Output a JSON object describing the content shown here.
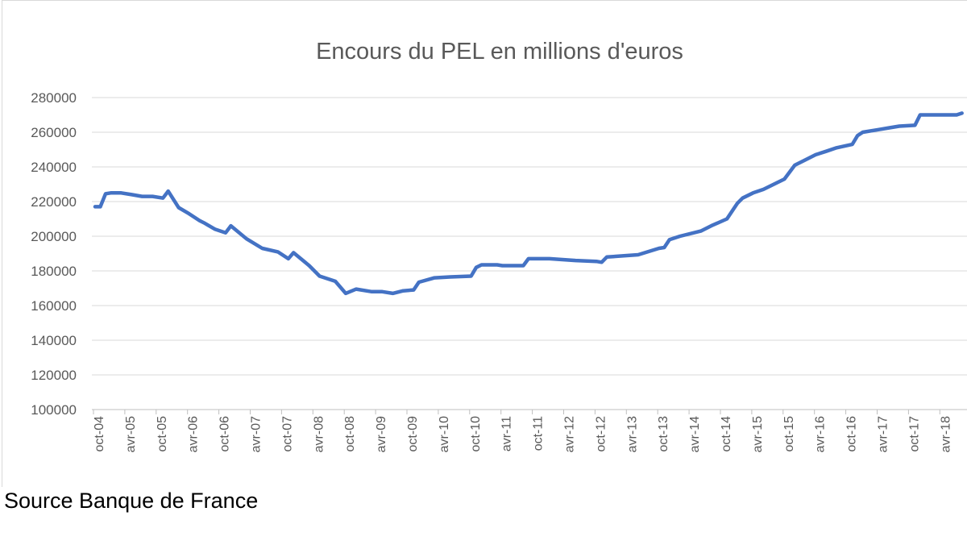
{
  "chart_data": {
    "type": "line",
    "title": "Encours du PEL en millions d'euros",
    "xlabel": "",
    "ylabel": "",
    "ylim": [
      100000,
      280000
    ],
    "yticks": [
      "280000",
      "260000",
      "240000",
      "220000",
      "200000",
      "180000",
      "160000",
      "140000",
      "120000",
      "100000"
    ],
    "xticks": [
      "oct-04",
      "avr-05",
      "oct-05",
      "avr-06",
      "oct-06",
      "avr-07",
      "oct-07",
      "avr-08",
      "oct-08",
      "avr-09",
      "oct-09",
      "avr-10",
      "oct-10",
      "avr-11",
      "oct-11",
      "avr-12",
      "oct-12",
      "avr-13",
      "oct-13",
      "avr-14",
      "oct-14",
      "avr-15",
      "oct-15",
      "avr-16",
      "oct-16",
      "avr-17",
      "oct-17",
      "avr-18"
    ],
    "grid": true,
    "line_color": "#4472c4",
    "series": [
      {
        "x": [
          "2004-10",
          "2004-11",
          "2004-12",
          "2005-01",
          "2005-03",
          "2005-05",
          "2005-07",
          "2005-09",
          "2005-11",
          "2005-12",
          "2006-02",
          "2006-04",
          "2006-06",
          "2006-07",
          "2006-09",
          "2006-11",
          "2006-12",
          "2007-03",
          "2007-06",
          "2007-09",
          "2007-11",
          "2007-12",
          "2008-03",
          "2008-05",
          "2008-08",
          "2008-10",
          "2008-12",
          "2009-03",
          "2009-05",
          "2009-07",
          "2009-09",
          "2009-11",
          "2009-12",
          "2010-03",
          "2010-06",
          "2010-10",
          "2010-11",
          "2010-12",
          "2011-03",
          "2011-04",
          "2011-08",
          "2011-09",
          "2012-01",
          "2012-06",
          "2012-10",
          "2012-11",
          "2012-12",
          "2013-06",
          "2013-10",
          "2013-11",
          "2013-12",
          "2014-02",
          "2014-06",
          "2014-08",
          "2014-11",
          "2015-01",
          "2015-02",
          "2015-04",
          "2015-06",
          "2015-08",
          "2015-10",
          "2015-12",
          "2016-02",
          "2016-04",
          "2016-06",
          "2016-08",
          "2016-11",
          "2016-12",
          "2017-01",
          "2017-04",
          "2017-06",
          "2017-08",
          "2017-11",
          "2017-12",
          "2018-07",
          "2018-08"
        ],
        "y": [
          217000,
          217000,
          224500,
          225000,
          225000,
          224000,
          223000,
          223000,
          222000,
          226000,
          216500,
          213000,
          209000,
          207500,
          204000,
          202000,
          206000,
          198500,
          193000,
          191000,
          187000,
          190500,
          183000,
          177000,
          174000,
          167000,
          169500,
          168000,
          168000,
          167000,
          168500,
          169000,
          173500,
          176000,
          176500,
          177000,
          182000,
          183500,
          183500,
          183000,
          183000,
          187000,
          187000,
          186000,
          185500,
          185000,
          188000,
          189300,
          193000,
          193500,
          198000,
          200000,
          203000,
          206000,
          210000,
          219000,
          222000,
          225000,
          227000,
          230000,
          233000,
          241000,
          244000,
          247000,
          249000,
          251000,
          253000,
          258000,
          260000,
          261500,
          262500,
          263500,
          264000,
          270000,
          270000,
          271000
        ]
      }
    ]
  },
  "source": "Source Banque de France"
}
